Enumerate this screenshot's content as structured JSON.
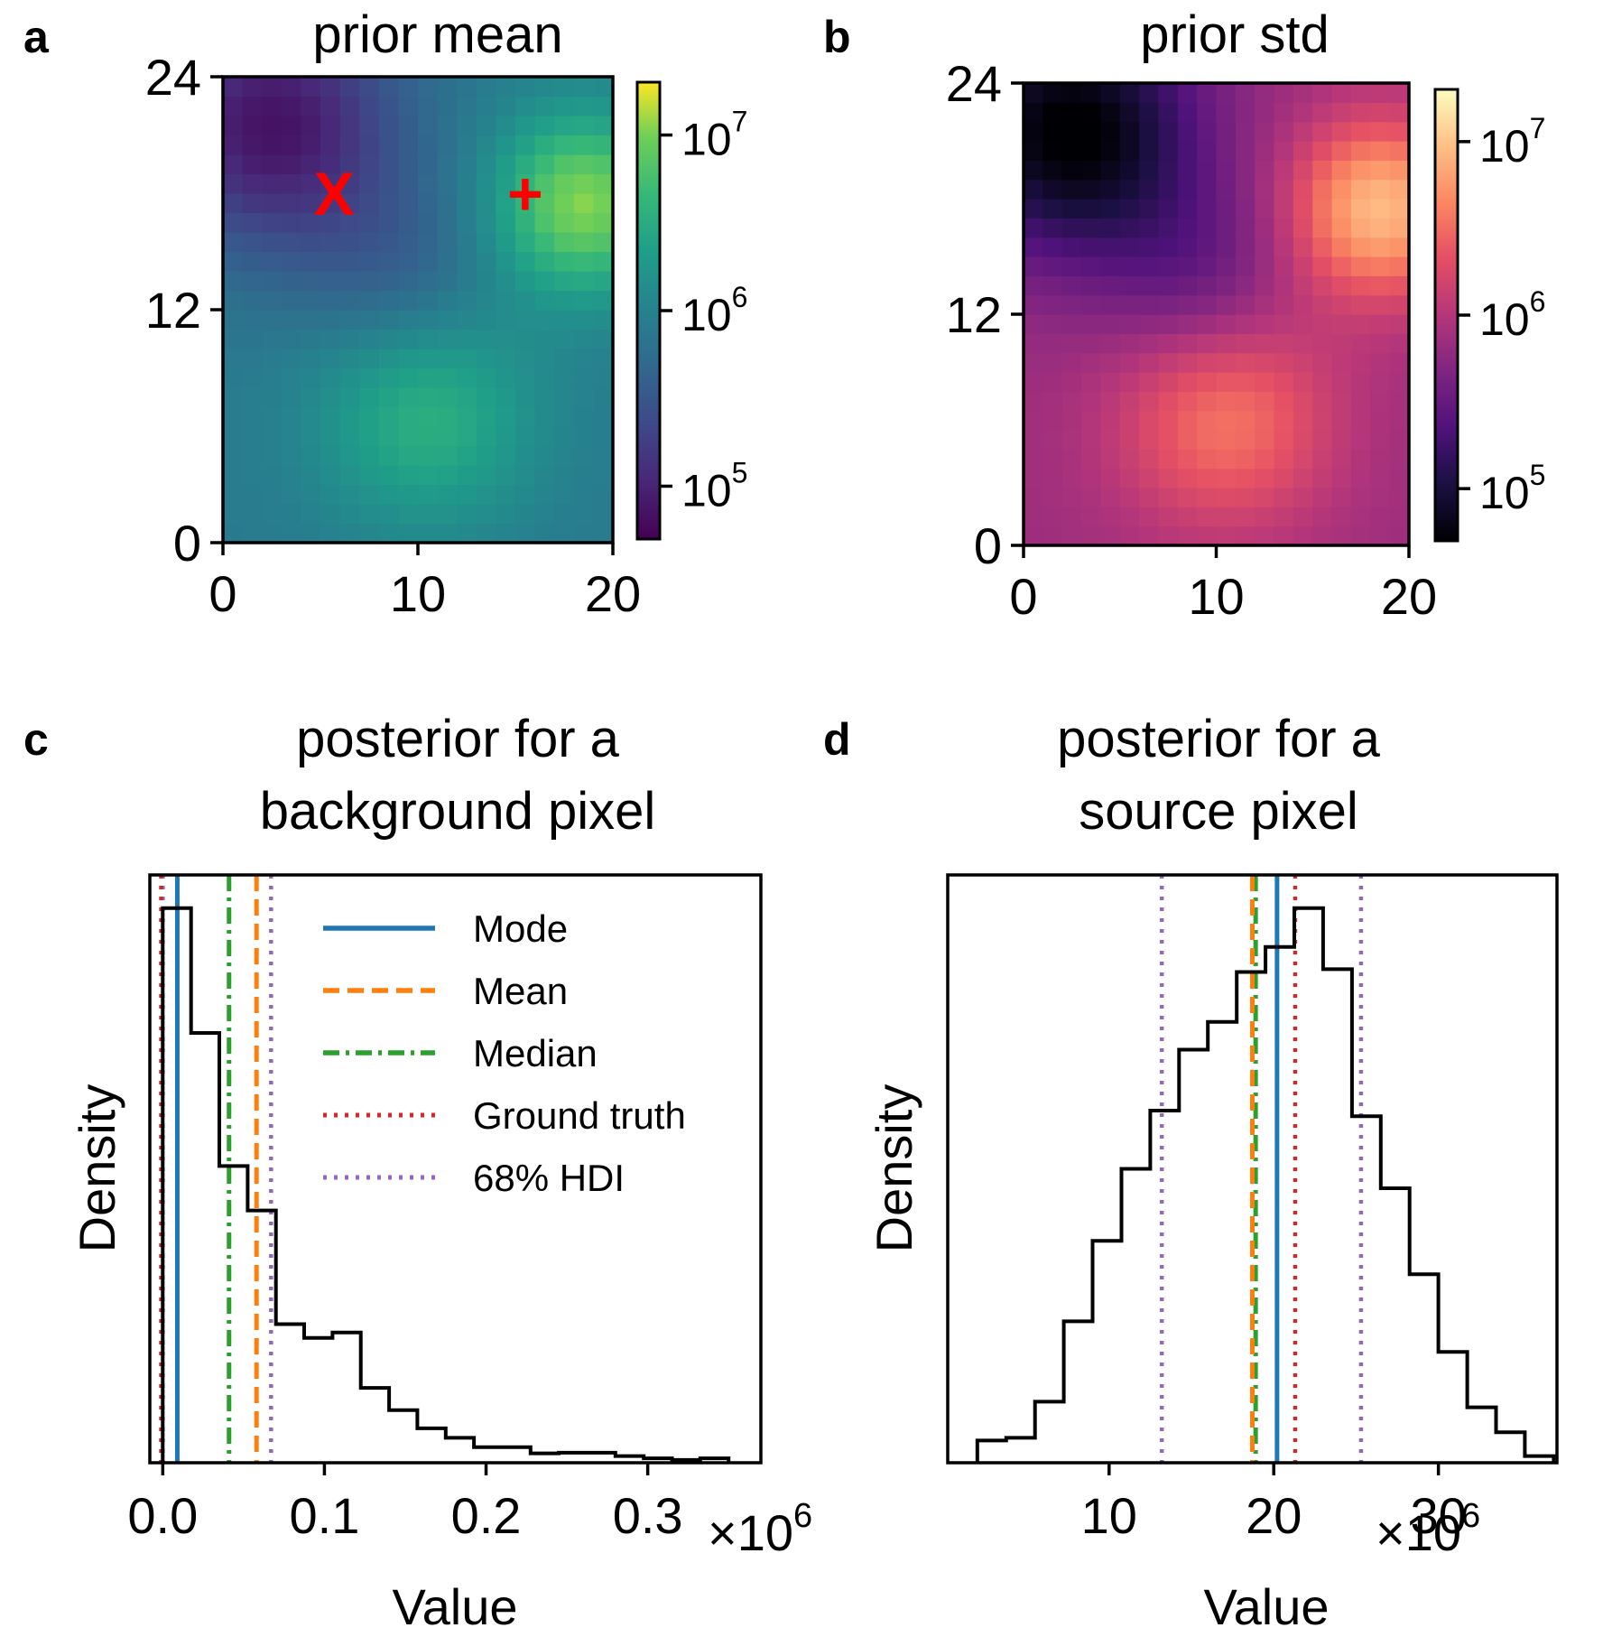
{
  "chart_data": [
    {
      "panel": "a",
      "type": "heatmap",
      "title": "prior mean",
      "colormap": "viridis",
      "grid": {
        "cols": 20,
        "rows": 24
      },
      "xlim": [
        0,
        20
      ],
      "ylim": [
        0,
        24
      ],
      "xticks": [
        "0",
        "10",
        "20"
      ],
      "yticks": [
        "0",
        "12",
        "24"
      ],
      "color_scale": "log",
      "color_range": [
        50000,
        20000000
      ],
      "colorbar_ticks": [
        {
          "value": 100000,
          "base": "10",
          "exp": "5"
        },
        {
          "value": 1000000,
          "base": "10",
          "exp": "6"
        },
        {
          "value": 10000000,
          "base": "10",
          "exp": "7"
        }
      ],
      "field_log10": {
        "base": 5.9,
        "bumps": [
          {
            "cx": 10.5,
            "cy": 6.5,
            "amp": 0.65,
            "sigma": 4.0
          },
          {
            "cx": 18.5,
            "cy": 17.5,
            "amp": 1.15,
            "sigma": 3.3
          },
          {
            "cx": 2.5,
            "cy": 21.5,
            "amp": -1.05,
            "sigma": 4.5
          },
          {
            "cx": 9.0,
            "cy": 14.0,
            "amp": -0.3,
            "sigma": 3.5
          }
        ]
      },
      "markers": [
        {
          "label": "X",
          "x": 5.7,
          "y": 18.0,
          "color": "#ff0000",
          "meaning": "background pixel"
        },
        {
          "label": "+",
          "x": 15.5,
          "y": 18.0,
          "color": "#ff0000",
          "meaning": "source pixel"
        }
      ]
    },
    {
      "panel": "b",
      "type": "heatmap",
      "title": "prior std",
      "colormap": "magma",
      "grid": {
        "cols": 20,
        "rows": 24
      },
      "xlim": [
        0,
        20
      ],
      "ylim": [
        0,
        24
      ],
      "xticks": [
        "0",
        "10",
        "20"
      ],
      "yticks": [
        "0",
        "12",
        "24"
      ],
      "color_scale": "log",
      "color_range": [
        50000,
        20000000
      ],
      "colorbar_ticks": [
        {
          "value": 100000,
          "base": "10",
          "exp": "5"
        },
        {
          "value": 1000000,
          "base": "10",
          "exp": "6"
        },
        {
          "value": 10000000,
          "base": "10",
          "exp": "7"
        }
      ],
      "field_log10": {
        "base": 5.85,
        "bumps": [
          {
            "cx": 10.5,
            "cy": 6.5,
            "amp": 0.7,
            "sigma": 4.0
          },
          {
            "cx": 18.5,
            "cy": 17.5,
            "amp": 1.1,
            "sigma": 3.3
          },
          {
            "cx": 2.5,
            "cy": 21.5,
            "amp": -1.2,
            "sigma": 4.5
          },
          {
            "cx": 9.0,
            "cy": 14.0,
            "amp": -0.35,
            "sigma": 3.5
          }
        ]
      }
    },
    {
      "panel": "c",
      "type": "histogram",
      "title_lines": [
        "posterior for a",
        "background pixel"
      ],
      "xlabel": "Value",
      "ylabel": "Density",
      "multiplier": "×10",
      "multiplier_exp": "6",
      "xlim": [
        -0.008,
        0.37
      ],
      "ylim": [
        0,
        1.06
      ],
      "xticks": [
        {
          "value": 0.0,
          "label": "0.0"
        },
        {
          "value": 0.1,
          "label": "0.1"
        },
        {
          "value": 0.2,
          "label": "0.2"
        },
        {
          "value": 0.3,
          "label": "0.3"
        }
      ],
      "bin_edges": [
        0,
        0.0175,
        0.035,
        0.0525,
        0.07,
        0.0875,
        0.105,
        0.1225,
        0.14,
        0.1575,
        0.175,
        0.1925,
        0.21,
        0.2275,
        0.245,
        0.2625,
        0.28,
        0.2975,
        0.315,
        0.3325,
        0.35
      ],
      "densities": [
        1.0,
        0.775,
        0.535,
        0.455,
        0.25,
        0.225,
        0.235,
        0.135,
        0.095,
        0.062,
        0.045,
        0.028,
        0.028,
        0.017,
        0.018,
        0.018,
        0.012,
        0.008,
        0.005,
        0.008
      ],
      "vlines": {
        "mode": 0.009,
        "mean": 0.058,
        "median": 0.041,
        "ground_truth": -0.001,
        "hdi": [
          0.0,
          0.067
        ]
      },
      "legend": [
        {
          "key": "mode",
          "label": "Mode",
          "color": "#1f77b4",
          "style": "solid"
        },
        {
          "key": "mean",
          "label": "Mean",
          "color": "#ff7f0e",
          "style": "dashed"
        },
        {
          "key": "median",
          "label": "Median",
          "color": "#2ca02c",
          "style": "dashdot"
        },
        {
          "key": "ground_truth",
          "label": "Ground truth",
          "color": "#d62728",
          "style": "dotted"
        },
        {
          "key": "hdi",
          "label": "68% HDI",
          "color": "#9467bd",
          "style": "dotted"
        }
      ]
    },
    {
      "panel": "d",
      "type": "histogram",
      "title_lines": [
        "posterior for a",
        "source pixel"
      ],
      "xlabel": "Value",
      "ylabel": "Density",
      "multiplier": "×10",
      "multiplier_exp": "6",
      "xlim": [
        0.2,
        37.2
      ],
      "ylim": [
        0,
        1.06
      ],
      "xticks": [
        {
          "value": 10,
          "label": "10"
        },
        {
          "value": 20,
          "label": "20"
        },
        {
          "value": 30,
          "label": "30"
        }
      ],
      "bin_edges": [
        2.0,
        3.75,
        5.5,
        7.25,
        9.0,
        10.75,
        12.5,
        14.25,
        16.0,
        17.75,
        19.5,
        21.25,
        23.0,
        24.75,
        26.5,
        28.25,
        30.0,
        31.75,
        33.5,
        35.25,
        37.0
      ],
      "densities": [
        0.04,
        0.045,
        0.11,
        0.255,
        0.4,
        0.53,
        0.635,
        0.745,
        0.795,
        0.885,
        0.93,
        1.0,
        0.89,
        0.625,
        0.495,
        0.34,
        0.2,
        0.1,
        0.055,
        0.012
      ],
      "vlines": {
        "mode": 20.2,
        "mean": 18.7,
        "median": 18.9,
        "ground_truth": 21.3,
        "hdi": [
          13.2,
          25.3
        ]
      }
    }
  ]
}
